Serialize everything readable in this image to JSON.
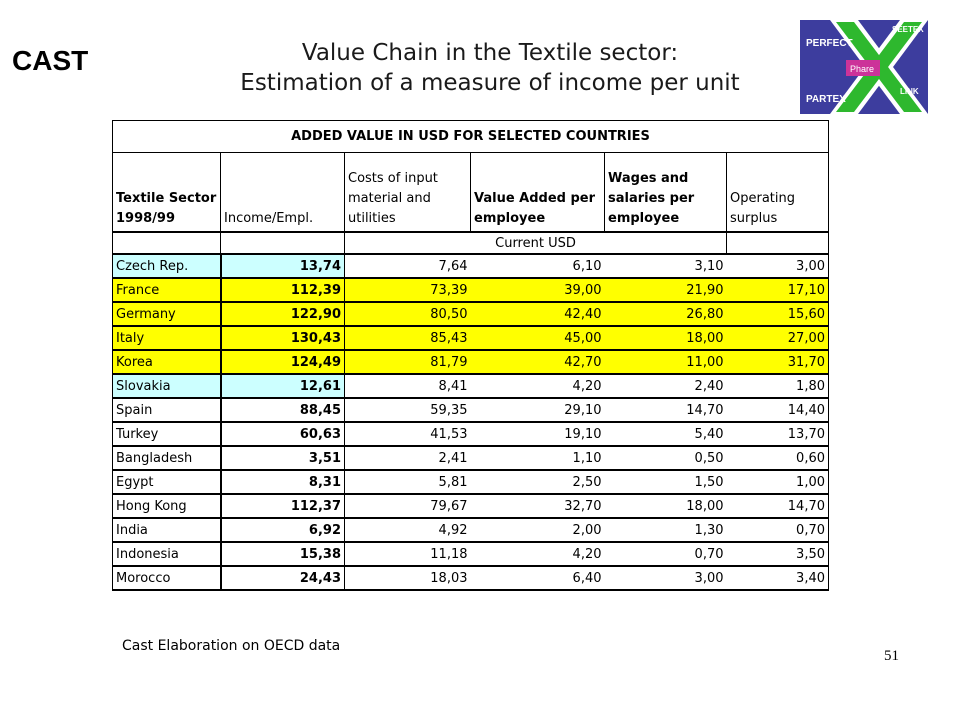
{
  "logos": {
    "cast_text": "CAST",
    "partner_top": "SEETEX",
    "partner_perfect": "PERFECT",
    "partner_phare": "Phare",
    "partner_partex": "PARTEX",
    "partner_link": "LINK"
  },
  "title": {
    "line1": "Value Chain in the Textile sector:",
    "line2": "Estimation of a measure of income per unit"
  },
  "table": {
    "caption": "ADDED VALUE IN USD  FOR SELECTED COUNTRIES",
    "headers": {
      "sector": "Textile Sector 1998/99",
      "income": "Income/Empl.",
      "costs": "Costs of input material and utilities",
      "value_added": "Value Added per employee",
      "wages": "Wages and salaries per employee",
      "surplus": "Operating surplus"
    },
    "unit": "Current USD",
    "rows": [
      {
        "country": "Czech Rep.",
        "income": "13,74",
        "costs": "7,64",
        "value_added": "6,10",
        "wages": "3,10",
        "surplus": "3,00",
        "highlight": "blue"
      },
      {
        "country": "France",
        "income": "112,39",
        "costs": "73,39",
        "value_added": "39,00",
        "wages": "21,90",
        "surplus": "17,10",
        "highlight": "yellow"
      },
      {
        "country": "Germany",
        "income": "122,90",
        "costs": "80,50",
        "value_added": "42,40",
        "wages": "26,80",
        "surplus": "15,60",
        "highlight": "yellow"
      },
      {
        "country": "Italy",
        "income": "130,43",
        "costs": "85,43",
        "value_added": "45,00",
        "wages": "18,00",
        "surplus": "27,00",
        "highlight": "yellow"
      },
      {
        "country": "Korea",
        "income": "124,49",
        "costs": "81,79",
        "value_added": "42,70",
        "wages": "11,00",
        "surplus": "31,70",
        "highlight": "yellow"
      },
      {
        "country": "Slovakia",
        "income": "12,61",
        "costs": "8,41",
        "value_added": "4,20",
        "wages": "2,40",
        "surplus": "1,80",
        "highlight": "blue"
      },
      {
        "country": "Spain",
        "income": "88,45",
        "costs": "59,35",
        "value_added": "29,10",
        "wages": "14,70",
        "surplus": "14,40",
        "highlight": "none"
      },
      {
        "country": "Turkey",
        "income": "60,63",
        "costs": "41,53",
        "value_added": "19,10",
        "wages": "5,40",
        "surplus": "13,70",
        "highlight": "none"
      },
      {
        "country": "Bangladesh",
        "income": "3,51",
        "costs": "2,41",
        "value_added": "1,10",
        "wages": "0,50",
        "surplus": "0,60",
        "highlight": "none"
      },
      {
        "country": "Egypt",
        "income": "8,31",
        "costs": "5,81",
        "value_added": "2,50",
        "wages": "1,50",
        "surplus": "1,00",
        "highlight": "none"
      },
      {
        "country": "Hong Kong",
        "income": "112,37",
        "costs": "79,67",
        "value_added": "32,70",
        "wages": "18,00",
        "surplus": "14,70",
        "highlight": "none"
      },
      {
        "country": "India",
        "income": "6,92",
        "costs": "4,92",
        "value_added": "2,00",
        "wages": "1,30",
        "surplus": "0,70",
        "highlight": "none"
      },
      {
        "country": "Indonesia",
        "income": "15,38",
        "costs": "11,18",
        "value_added": "4,20",
        "wages": "0,70",
        "surplus": "3,50",
        "highlight": "none"
      },
      {
        "country": "Morocco",
        "income": "24,43",
        "costs": "18,03",
        "value_added": "6,40",
        "wages": "3,00",
        "surplus": "3,40",
        "highlight": "none"
      }
    ]
  },
  "source": "Cast Elaboration on OECD data",
  "page_number": "51",
  "colors": {
    "highlight_blue": "#ccffff",
    "highlight_yellow": "#ffff00",
    "logo_blue": "#3d3d9e",
    "logo_green": "#2eb82e",
    "logo_pink": "#cc3399"
  }
}
